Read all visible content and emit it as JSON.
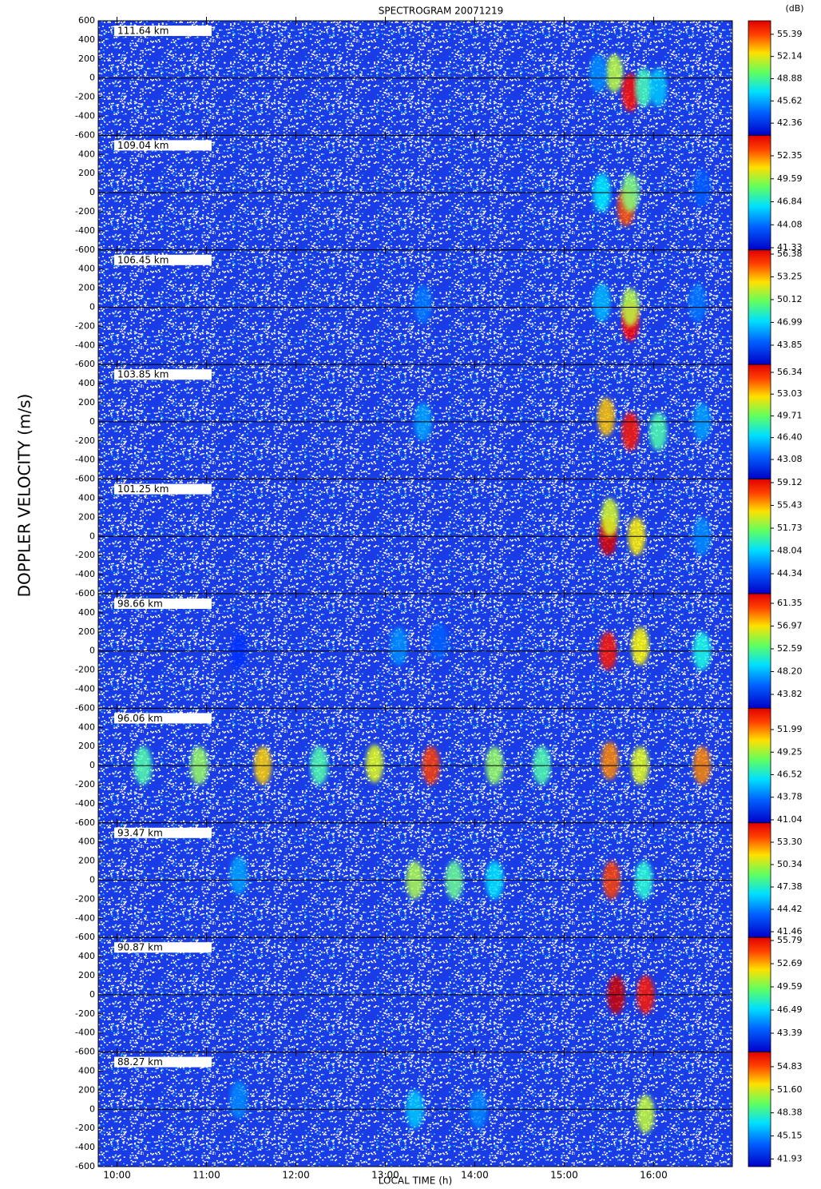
{
  "chart_data": {
    "type": "heatmap",
    "title": "SPECTROGRAM 20071219",
    "ylabel": "DOPPLER VELOCITY (m/s)",
    "xlabel": "LOCAL TIME (h)",
    "colorbar_label": "(dB)",
    "xlim": [
      9.79,
      16.88
    ],
    "xticks": [
      {
        "value": 10,
        "label": "10:00"
      },
      {
        "value": 11,
        "label": "11:00"
      },
      {
        "value": 12,
        "label": "12:00"
      },
      {
        "value": 13,
        "label": "13:00"
      },
      {
        "value": 14,
        "label": "14:00"
      },
      {
        "value": 15,
        "label": "15:00"
      },
      {
        "value": 16,
        "label": "16:00"
      }
    ],
    "ylim": [
      -600,
      600
    ],
    "yticks": [
      -600,
      -400,
      -200,
      0,
      200,
      400,
      600
    ],
    "panels": [
      {
        "label": "111.64 km",
        "zlim": [
          40.57,
          57.37
        ],
        "zticks": [
          42.36,
          45.62,
          48.88,
          52.14,
          55.39
        ],
        "echoes": [
          {
            "x": 15.56,
            "y": 50,
            "value": 50
          },
          {
            "x": 15.74,
            "y": -150,
            "value": 55
          },
          {
            "x": 15.89,
            "y": -100,
            "value": 48
          },
          {
            "x": 16.05,
            "y": -100,
            "value": 46
          },
          {
            "x": 15.38,
            "y": 50,
            "value": 45
          }
        ]
      },
      {
        "label": "109.04 km",
        "zlim": [
          41.06,
          54.8
        ],
        "zticks": [
          41.33,
          44.08,
          46.84,
          49.59,
          52.35
        ],
        "echoes": [
          {
            "x": 15.69,
            "y": -150,
            "value": 52
          },
          {
            "x": 15.74,
            "y": 0,
            "value": 48
          },
          {
            "x": 15.42,
            "y": 0,
            "value": 46
          },
          {
            "x": 16.54,
            "y": 50,
            "value": 44
          }
        ]
      },
      {
        "label": "106.45 km",
        "zlim": [
          41.19,
          56.95
        ],
        "zticks": [
          43.85,
          46.99,
          50.12,
          53.25,
          56.38
        ],
        "echoes": [
          {
            "x": 15.74,
            "y": -150,
            "value": 55
          },
          {
            "x": 15.74,
            "y": 0,
            "value": 50
          },
          {
            "x": 15.42,
            "y": 50,
            "value": 46
          },
          {
            "x": 13.42,
            "y": 30,
            "value": 45
          },
          {
            "x": 16.49,
            "y": 50,
            "value": 45
          }
        ]
      },
      {
        "label": "103.85 km",
        "zlim": [
          40.09,
          57.53
        ],
        "zticks": [
          43.08,
          {
            "value": 46.4,
            "label": "46.40"
          },
          49.71,
          53.03,
          56.34
        ],
        "echoes": [
          {
            "x": 15.47,
            "y": 50,
            "value": 52
          },
          {
            "x": 15.74,
            "y": -100,
            "value": 55
          },
          {
            "x": 16.05,
            "y": -100,
            "value": 48
          },
          {
            "x": 13.42,
            "y": 0,
            "value": 45
          },
          {
            "x": 16.54,
            "y": 0,
            "value": 45
          }
        ]
      },
      {
        "label": "101.25 km",
        "zlim": [
          41.1,
          59.69
        ],
        "zticks": [
          44.34,
          48.04,
          51.73,
          55.43,
          59.12
        ],
        "echoes": [
          {
            "x": 15.49,
            "y": 0,
            "value": 58
          },
          {
            "x": 15.51,
            "y": 200,
            "value": 52
          },
          {
            "x": 15.81,
            "y": 0,
            "value": 53
          },
          {
            "x": 16.54,
            "y": 0,
            "value": 46
          }
        ]
      },
      {
        "label": "98.66 km",
        "zlim": [
          41.14,
          63.2
        ],
        "zticks": [
          43.82,
          {
            "value": 48.2,
            "label": "48.20"
          },
          52.59,
          56.97,
          61.35
        ],
        "echoes": [
          {
            "x": 15.49,
            "y": 0,
            "value": 60
          },
          {
            "x": 15.85,
            "y": 50,
            "value": 55
          },
          {
            "x": 16.54,
            "y": 0,
            "value": 50
          },
          {
            "x": 13.15,
            "y": 50,
            "value": 47
          },
          {
            "x": 13.6,
            "y": 100,
            "value": 46
          },
          {
            "x": 11.36,
            "y": 0,
            "value": 45
          }
        ]
      },
      {
        "label": "96.06 km",
        "zlim": [
          40.67,
          54.57
        ],
        "zticks": [
          41.04,
          43.78,
          46.52,
          49.25,
          51.99
        ],
        "echoes": [
          {
            "x": 13.51,
            "y": 0,
            "value": 52
          },
          {
            "x": 12.88,
            "y": 20,
            "value": 49
          },
          {
            "x": 14.22,
            "y": 0,
            "value": 48
          },
          {
            "x": 10.29,
            "y": 0,
            "value": 47
          },
          {
            "x": 10.92,
            "y": 0,
            "value": 48
          },
          {
            "x": 11.63,
            "y": 0,
            "value": 50
          },
          {
            "x": 12.26,
            "y": 0,
            "value": 47
          },
          {
            "x": 14.75,
            "y": 0,
            "value": 47
          },
          {
            "x": 15.51,
            "y": 50,
            "value": 51
          },
          {
            "x": 15.85,
            "y": 0,
            "value": 49
          },
          {
            "x": 16.54,
            "y": 0,
            "value": 51
          }
        ]
      },
      {
        "label": "93.47 km",
        "zlim": [
          40.7,
          55.86
        ],
        "zticks": [
          41.46,
          44.42,
          47.38,
          50.34,
          {
            "value": 53.3,
            "label": "53.30"
          }
        ],
        "echoes": [
          {
            "x": 15.53,
            "y": 0,
            "value": 53
          },
          {
            "x": 13.33,
            "y": 0,
            "value": 49
          },
          {
            "x": 13.77,
            "y": 0,
            "value": 48
          },
          {
            "x": 11.36,
            "y": 50,
            "value": 45
          },
          {
            "x": 15.89,
            "y": 0,
            "value": 47
          },
          {
            "x": 14.22,
            "y": 0,
            "value": 46
          }
        ]
      },
      {
        "label": "90.87 km",
        "zlim": [
          40.87,
          56.2
        ],
        "zticks": [
          43.39,
          46.49,
          49.59,
          52.69,
          55.79
        ],
        "echoes": [
          {
            "x": 15.58,
            "y": 0,
            "value": 55
          },
          {
            "x": 15.91,
            "y": 0,
            "value": 54
          }
        ]
      },
      {
        "label": "88.27 km",
        "zlim": [
          40.86,
          56.88
        ],
        "zticks": [
          41.93,
          45.15,
          48.38,
          {
            "value": 51.6,
            "label": "51.60"
          },
          54.83
        ],
        "echoes": [
          {
            "x": 15.91,
            "y": -50,
            "value": 50
          },
          {
            "x": 13.33,
            "y": 0,
            "value": 46
          },
          {
            "x": 14.04,
            "y": 0,
            "value": 45
          },
          {
            "x": 11.36,
            "y": 100,
            "value": 45
          }
        ]
      }
    ]
  }
}
